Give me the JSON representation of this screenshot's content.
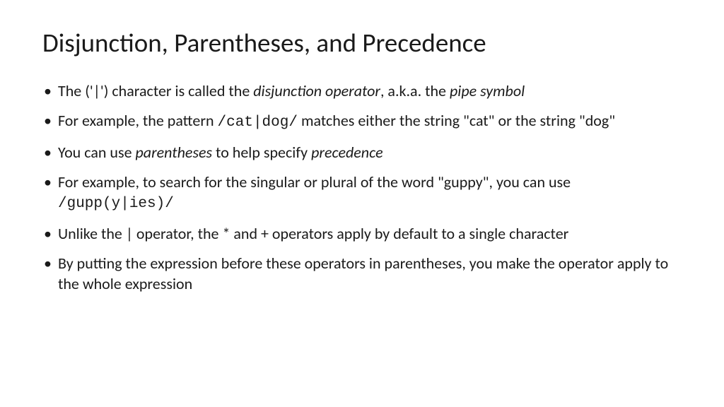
{
  "type": "presentation-slide",
  "background_color": "#ffffff",
  "text_color": "#1a1a1a",
  "title": {
    "text": "Disjunction, Parentheses, and Precedence",
    "fontsize": 37,
    "fontweight": 400
  },
  "bullet_fontsize": 22,
  "mono_font": "Courier New",
  "bullets": {
    "b0": {
      "p0": "The ('|') character is called the ",
      "i0": "disjunction operator",
      "p1": ", a.k.a. the ",
      "i1": "pipe symbol"
    },
    "b1": {
      "p0": "For example, the pattern ",
      "m0": "/cat|dog/",
      "p1": " matches either the string \"cat\" or the string \"dog\""
    },
    "b2": {
      "p0": "You can use ",
      "i0": "parentheses",
      "p1": " to help specify ",
      "i1": "precedence"
    },
    "b3": {
      "p0": "For example, to search for the singular or plural of the word \"guppy\", you can use ",
      "m0": "/gupp(y|ies)/"
    },
    "b4": {
      "p0": "Unlike the | operator, the * and + operators apply by default to a single character"
    },
    "b5": {
      "p0": "By putting the expression before these operators in parentheses, you make the operator apply to the whole expression"
    }
  }
}
